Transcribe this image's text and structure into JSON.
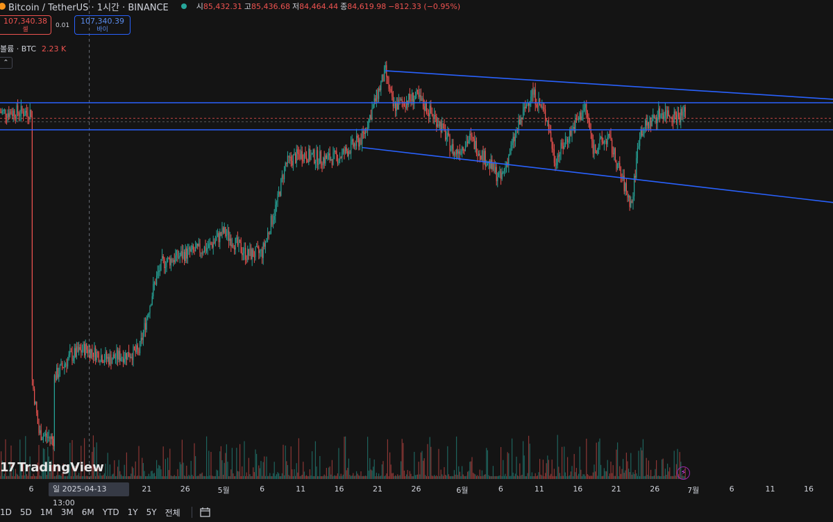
{
  "header": {
    "symbol": "Bitcoin / TetherUS · 1시간 · BINANCE",
    "open_label": "시",
    "open": "85,432.31",
    "high_label": "고",
    "high": "85,436.68",
    "low_label": "저",
    "low": "84,464.44",
    "close_label": "종",
    "close": "84,619.98",
    "change": "−812.33 (−0.95%)"
  },
  "trade": {
    "sell_price": "107,340.38",
    "sell_label": "셀",
    "spread": "0.01",
    "buy_price": "107,340.39",
    "buy_label": "바이"
  },
  "volume": {
    "label": "볼륨 · BTC",
    "value": "2.23 K"
  },
  "branding": {
    "name": "TradingView",
    "mark": "17"
  },
  "time_axis": {
    "ticks": [
      "6",
      "21",
      "26",
      "5월",
      "6",
      "11",
      "16",
      "21",
      "26",
      "6월",
      "6",
      "11",
      "16",
      "21",
      "26",
      "7월",
      "6",
      "11",
      "16"
    ],
    "crosshair_label": "일 2025-04-13   13:00"
  },
  "ranges": [
    "1D",
    "5D",
    "1M",
    "3M",
    "6M",
    "YTD",
    "1Y",
    "5Y",
    "전체"
  ],
  "icons": {
    "calendar": "calendar-range-icon",
    "flash": "lightning-icon",
    "collapse": "chevron-up-icon",
    "live": "live-dot-icon"
  },
  "colors": {
    "background": "#141414",
    "up": "#26a69a",
    "down": "#ef5350",
    "trendline": "#2962ff",
    "sell": "#ef5350",
    "buy": "#2962ff"
  },
  "chart_data": {
    "type": "candlestick",
    "title": "",
    "timeframe": "1시간",
    "x_range": [
      "2025-04-06",
      "2025-07-16"
    ],
    "y_range_approx": [
      74500,
      112000
    ],
    "last_close": 107340,
    "trendlines": [
      {
        "kind": "channel-top",
        "from": [
          "2025-05-22",
          111970
        ],
        "to": [
          "2025-07-20",
          109200
        ]
      },
      {
        "kind": "channel-bottom",
        "from": [
          "2025-05-19",
          104600
        ],
        "to": [
          "2025-07-20",
          99250
        ]
      },
      {
        "kind": "horizontal",
        "value": 108900
      },
      {
        "kind": "horizontal",
        "value": 106300
      }
    ],
    "price_path": [
      [
        "2025-04-06",
        83000
      ],
      [
        "2025-04-07",
        77200
      ],
      [
        "2025-04-09",
        76500
      ],
      [
        "2025-04-09",
        82500
      ],
      [
        "2025-04-11",
        84500
      ],
      [
        "2025-04-13",
        85300
      ],
      [
        "2025-04-16",
        84300
      ],
      [
        "2025-04-20",
        85000
      ],
      [
        "2025-04-22",
        91500
      ],
      [
        "2025-04-23",
        93500
      ],
      [
        "2025-04-26",
        94400
      ],
      [
        "2025-04-29",
        95000
      ],
      [
        "2025-05-01",
        96500
      ],
      [
        "2025-05-04",
        94300
      ],
      [
        "2025-05-06",
        94500
      ],
      [
        "2025-05-08",
        99500
      ],
      [
        "2025-05-09",
        103000
      ],
      [
        "2025-05-11",
        104000
      ],
      [
        "2025-05-14",
        103500
      ],
      [
        "2025-05-16",
        103700
      ],
      [
        "2025-05-19",
        105500
      ],
      [
        "2025-05-22",
        111900
      ],
      [
        "2025-05-23",
        108500
      ],
      [
        "2025-05-26",
        109500
      ],
      [
        "2025-05-29",
        107000
      ],
      [
        "2025-05-31",
        104000
      ],
      [
        "2025-06-02",
        105500
      ],
      [
        "2025-06-06",
        101500
      ],
      [
        "2025-06-08",
        106000
      ],
      [
        "2025-06-10",
        110000
      ],
      [
        "2025-06-12",
        107500
      ],
      [
        "2025-06-13",
        103300
      ],
      [
        "2025-06-15",
        106000
      ],
      [
        "2025-06-17",
        108500
      ],
      [
        "2025-06-18",
        104500
      ],
      [
        "2025-06-20",
        105500
      ],
      [
        "2025-06-22",
        101000
      ],
      [
        "2025-06-23",
        99000
      ],
      [
        "2025-06-24",
        106000
      ],
      [
        "2025-06-26",
        107500
      ],
      [
        "2025-06-27",
        108000
      ],
      [
        "2025-06-29",
        107600
      ],
      [
        "2025-06-30",
        108000
      ]
    ]
  }
}
